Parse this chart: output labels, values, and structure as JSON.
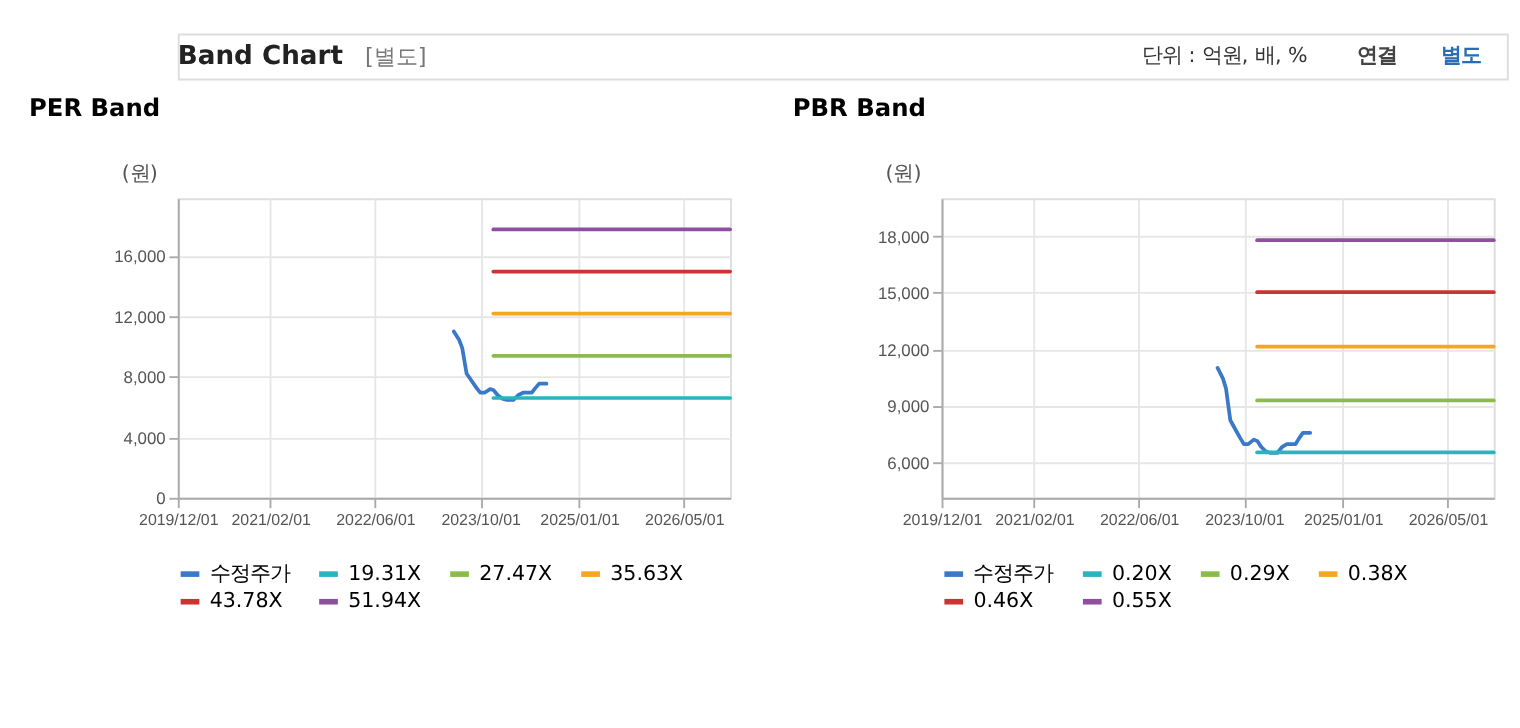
{
  "chart_data": [
    {
      "type": "line",
      "title": "PER Band",
      "ylabel": "(원)",
      "annotations": [
        "Band Chart",
        "[별도]",
        "단위 : 억원, 배, %",
        "연결",
        "별도"
      ],
      "xlim": [
        "2019-12-01",
        "2026-12-01"
      ],
      "ylim": [
        0,
        19800
      ],
      "xticks": [
        {
          "value": "2019-12-01",
          "label": "2019/12/01"
        },
        {
          "value": "2021-02-01",
          "label": "2021/02/01"
        },
        {
          "value": "2022-06-01",
          "label": "2022/06/01"
        },
        {
          "value": "2023-10-01",
          "label": "2023/10/01"
        },
        {
          "value": "2025-01-01",
          "label": "2025/01/01"
        },
        {
          "value": "2026-05-01",
          "label": "2026/05/01"
        }
      ],
      "yticks": [
        0,
        {
          "value": 4000,
          "label": "4,000"
        },
        {
          "value": 8000,
          "label": "8,000"
        },
        {
          "value": 12000,
          "label": "12,000"
        },
        {
          "value": 16000,
          "label": "16,000"
        }
      ],
      "grid": true,
      "legend": "bottom",
      "series": [
        {
          "name": "수정주가",
          "color": "#3a78c8",
          "x": [
            "2023-06-01",
            "2023-06-26",
            "2023-07-10",
            "2023-07-30",
            "2023-08-22",
            "2023-09-14",
            "2023-10-01",
            "2023-10-21",
            "2023-11-16",
            "2023-12-03",
            "2023-12-20",
            "2024-01-11",
            "2024-02-03",
            "2024-03-03",
            "2024-03-26",
            "2024-04-17",
            "2024-05-27",
            "2024-06-13",
            "2024-06-30",
            "2024-08-03"
          ],
          "values": [
            11000,
            10430,
            9900,
            8220,
            7740,
            7270,
            6950,
            6950,
            7190,
            7110,
            6800,
            6560,
            6480,
            6480,
            6800,
            6950,
            6950,
            7270,
            7550,
            7550
          ]
        },
        {
          "name": "19.31X",
          "color": "#2bb3c0",
          "x": [
            "2023-12-01",
            "2026-12-01"
          ],
          "values": [
            6600,
            6600
          ]
        },
        {
          "name": "27.47X",
          "color": "#8bbb4a",
          "x": [
            "2023-12-01",
            "2026-12-01"
          ],
          "values": [
            9390,
            9390
          ]
        },
        {
          "name": "35.63X",
          "color": "#f5a623",
          "x": [
            "2023-12-01",
            "2026-12-01"
          ],
          "values": [
            12180,
            12180
          ]
        },
        {
          "name": "43.78X",
          "color": "#cc3333",
          "x": [
            "2023-12-01",
            "2026-12-01"
          ],
          "values": [
            14960,
            14960
          ]
        },
        {
          "name": "51.94X",
          "color": "#8e4fa0",
          "x": [
            "2023-12-01",
            "2026-12-01"
          ],
          "values": [
            17740,
            17740
          ]
        }
      ]
    },
    {
      "type": "line",
      "title": "PBR Band",
      "ylabel": "(원)",
      "xlim": [
        "2019-12-01",
        "2026-12-01"
      ],
      "ylim": [
        4100,
        20000
      ],
      "xticks": [
        {
          "value": "2019-12-01",
          "label": "2019/12/01"
        },
        {
          "value": "2021-02-01",
          "label": "2021/02/01"
        },
        {
          "value": "2022-06-01",
          "label": "2022/06/01"
        },
        {
          "value": "2023-10-01",
          "label": "2023/10/01"
        },
        {
          "value": "2025-01-01",
          "label": "2025/01/01"
        },
        {
          "value": "2026-05-01",
          "label": "2026/05/01"
        }
      ],
      "yticks": [
        {
          "value": 6000,
          "label": "6,000"
        },
        {
          "value": 9000,
          "label": "9,000"
        },
        {
          "value": 12000,
          "label": "12,000"
        },
        {
          "value": 15000,
          "label": "15,000"
        },
        {
          "value": 18000,
          "label": "18,000"
        }
      ],
      "grid": true,
      "legend": "bottom",
      "series": [
        {
          "name": "수정주가",
          "color": "#3a78c8",
          "x": [
            "2023-06-01",
            "2023-06-26",
            "2023-07-10",
            "2023-07-30",
            "2023-08-22",
            "2023-09-14",
            "2023-10-01",
            "2023-10-21",
            "2023-11-16",
            "2023-12-03",
            "2023-12-20",
            "2024-01-11",
            "2024-02-03",
            "2024-03-03",
            "2024-03-26",
            "2024-04-17",
            "2024-05-27",
            "2024-06-13",
            "2024-06-30",
            "2024-08-03"
          ],
          "values": [
            11000,
            10430,
            9900,
            8220,
            7740,
            7270,
            6950,
            6950,
            7190,
            7110,
            6800,
            6560,
            6480,
            6480,
            6800,
            6950,
            6950,
            7270,
            7550,
            7550
          ]
        },
        {
          "name": "0.20X",
          "color": "#2bb3c0",
          "x": [
            "2023-12-01",
            "2026-12-01"
          ],
          "values": [
            6510,
            6510
          ]
        },
        {
          "name": "0.29X",
          "color": "#8bbb4a",
          "x": [
            "2023-12-01",
            "2026-12-01"
          ],
          "values": [
            9270,
            9270
          ]
        },
        {
          "name": "0.38X",
          "color": "#f5a623",
          "x": [
            "2023-12-01",
            "2026-12-01"
          ],
          "values": [
            12130,
            12130
          ]
        },
        {
          "name": "0.46X",
          "color": "#cc3333",
          "x": [
            "2023-12-01",
            "2026-12-01"
          ],
          "values": [
            15020,
            15020
          ]
        },
        {
          "name": "0.55X",
          "color": "#8e4fa0",
          "x": [
            "2023-12-01",
            "2026-12-01"
          ],
          "values": [
            17780,
            17780
          ]
        }
      ]
    }
  ]
}
